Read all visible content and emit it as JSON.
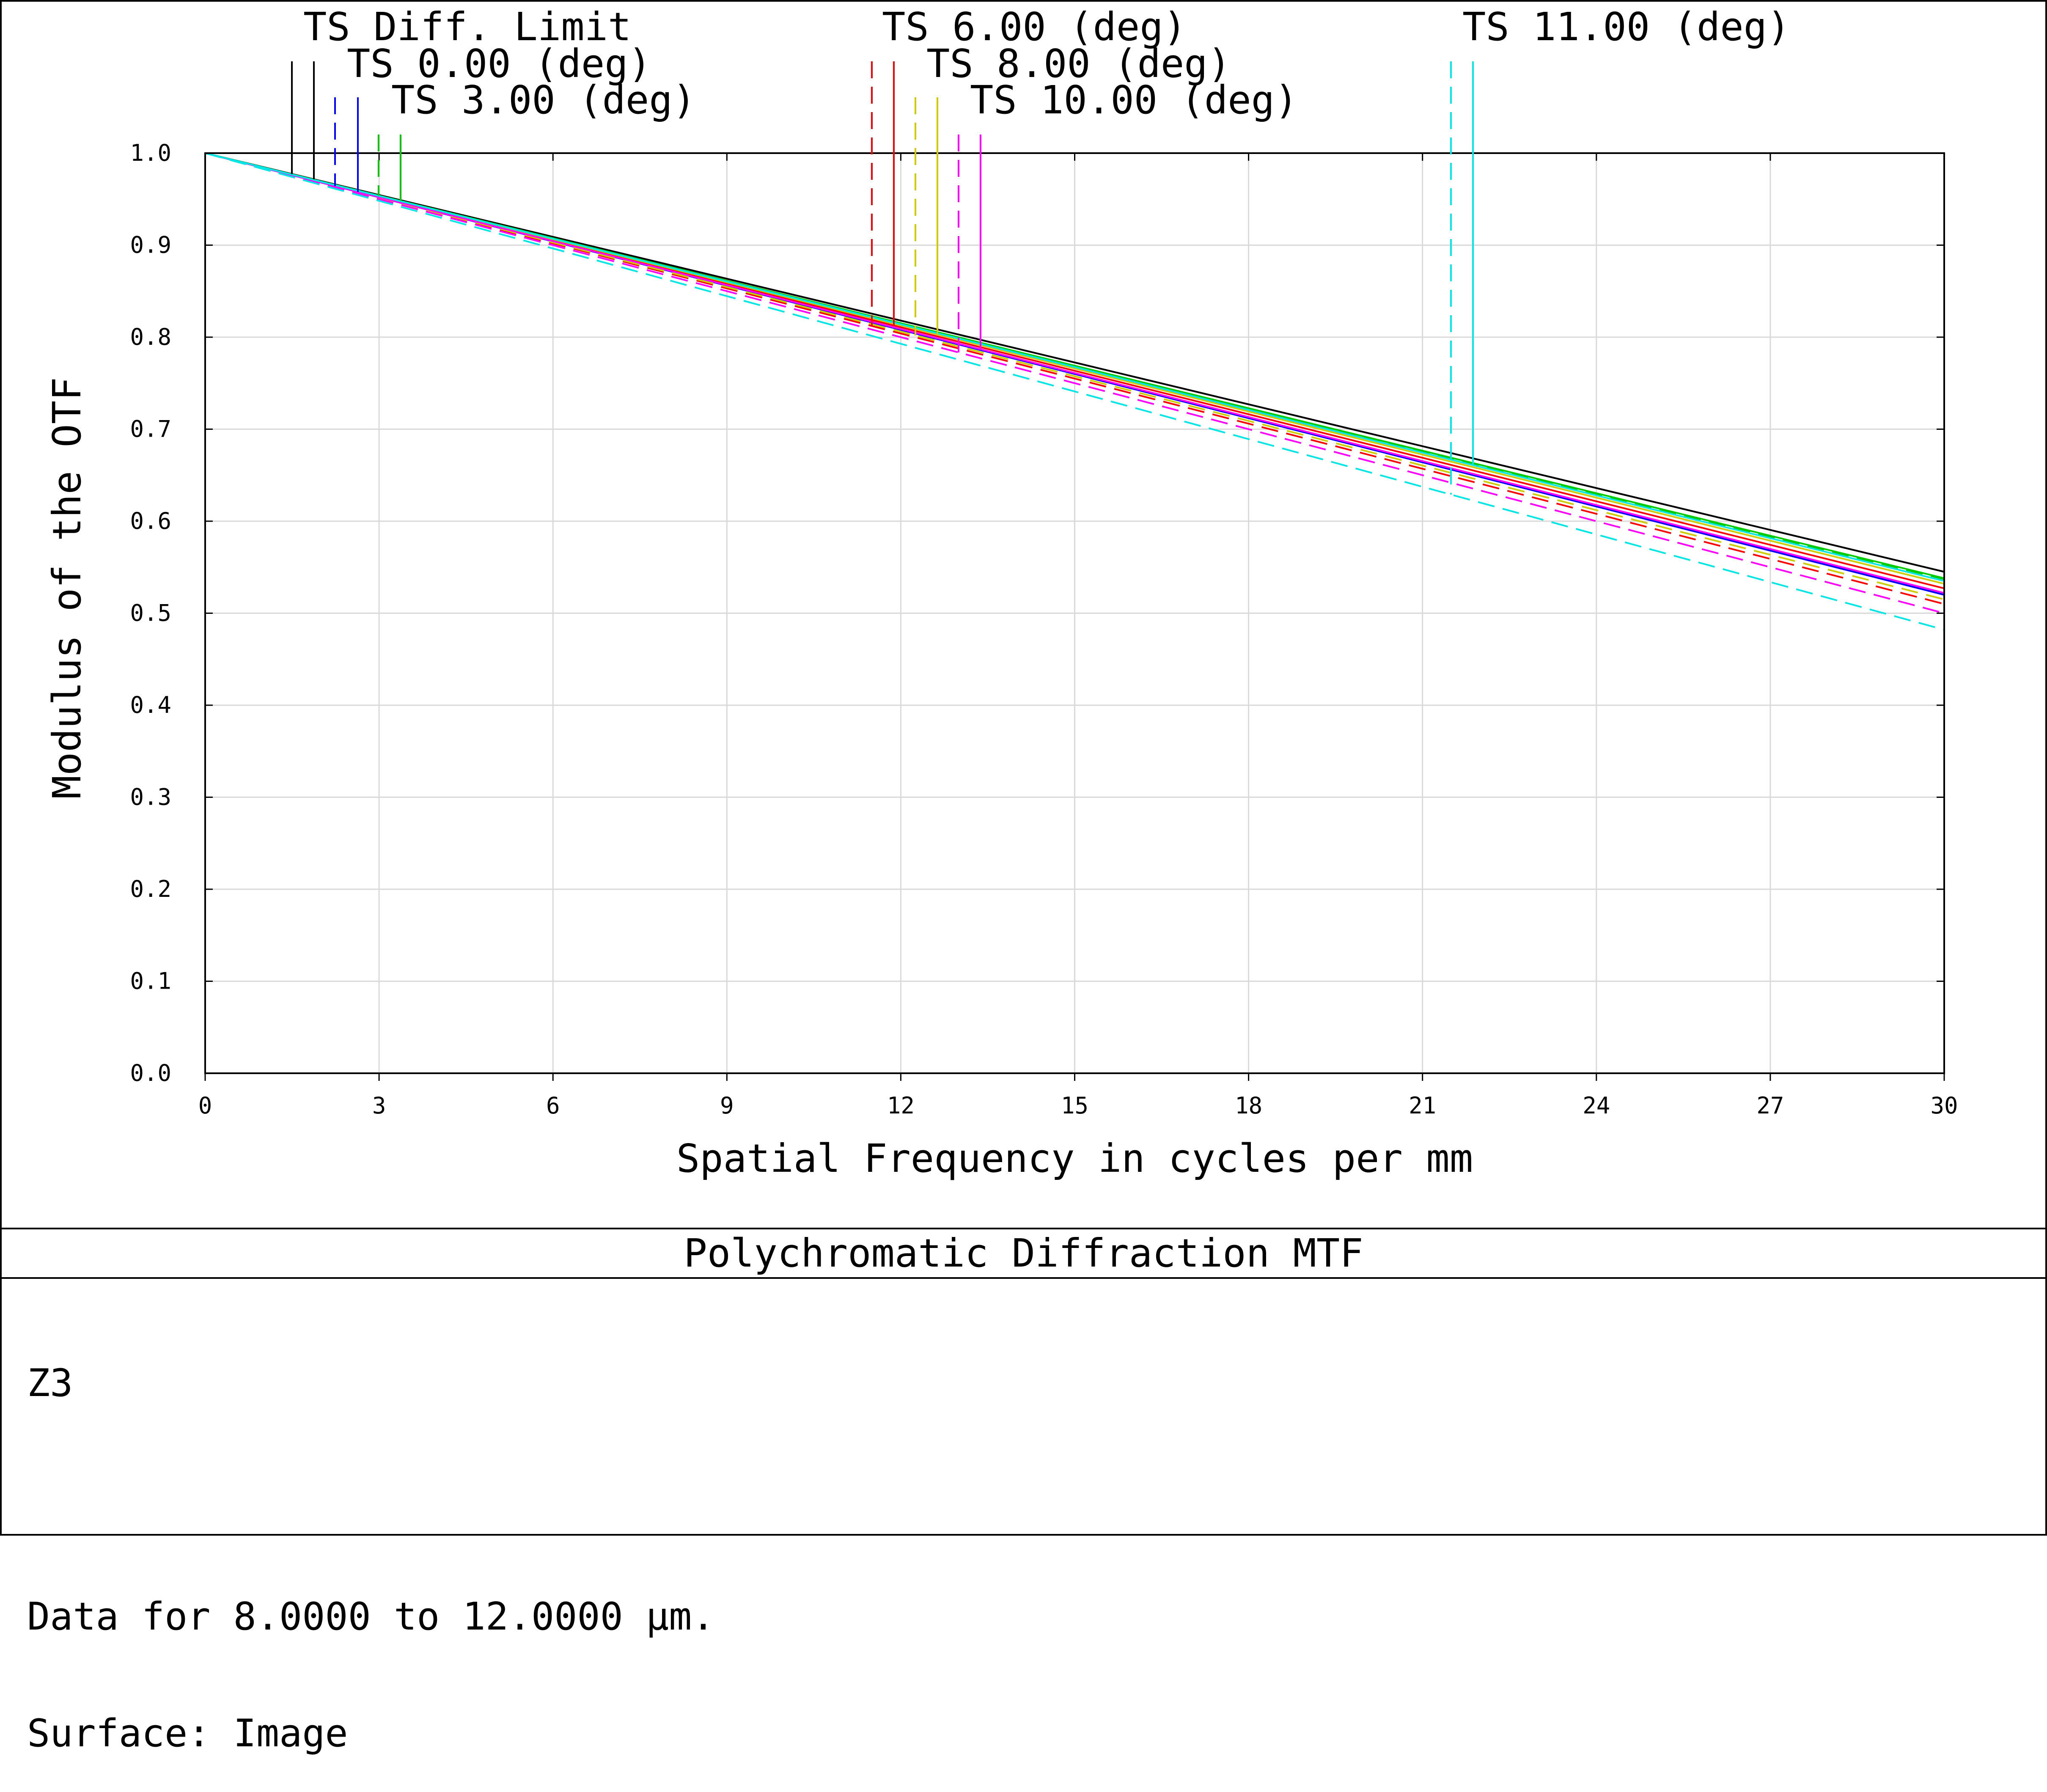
{
  "chart_data": {
    "type": "line",
    "title": "Polychromatic Diffraction MTF",
    "xlabel": "Spatial Frequency in cycles per mm",
    "ylabel": "Modulus of the OTF",
    "xlim": [
      0,
      30
    ],
    "ylim": [
      0,
      1
    ],
    "xticks": [
      "0",
      "3",
      "6",
      "9",
      "12",
      "15",
      "18",
      "21",
      "24",
      "27",
      "30"
    ],
    "yticks": [
      "0.0",
      "0.1",
      "0.2",
      "0.3",
      "0.4",
      "0.5",
      "0.6",
      "0.7",
      "0.8",
      "0.9",
      "1.0"
    ],
    "grid": true,
    "legend_placement": "top",
    "legend_labels": [
      "TS Diff. Limit",
      "TS 0.00 (deg)",
      "TS 3.00 (deg)",
      "TS 6.00 (deg)",
      "TS 8.00 (deg)",
      "TS 10.00 (deg)",
      "TS 11.00 (deg)"
    ],
    "series": [
      {
        "name": "TS Diff. Limit",
        "linestyle": "solid",
        "color": "#000000",
        "x": [
          0,
          30
        ],
        "y": [
          1.0,
          0.545
        ]
      },
      {
        "name": "TS Diff. Limit",
        "linestyle": "solid",
        "color": "#000000",
        "x": [
          0,
          30
        ],
        "y": [
          1.0,
          0.545
        ]
      },
      {
        "name": "TS 0.00 (deg)",
        "linestyle": "dashed",
        "color": "#0000ff",
        "x": [
          0,
          30
        ],
        "y": [
          1.0,
          0.52
        ]
      },
      {
        "name": "TS 0.00 (deg)",
        "linestyle": "solid",
        "color": "#0000ff",
        "x": [
          0,
          30
        ],
        "y": [
          1.0,
          0.52
        ]
      },
      {
        "name": "TS 3.00 (deg)",
        "linestyle": "dashed",
        "color": "#00cc00",
        "x": [
          0,
          30
        ],
        "y": [
          1.0,
          0.537
        ]
      },
      {
        "name": "TS 3.00 (deg)",
        "linestyle": "solid",
        "color": "#00cc00",
        "x": [
          0,
          30
        ],
        "y": [
          1.0,
          0.538
        ]
      },
      {
        "name": "TS 6.00 (deg)",
        "linestyle": "dashed",
        "color": "#ff0000",
        "x": [
          0,
          30
        ],
        "y": [
          1.0,
          0.51
        ]
      },
      {
        "name": "TS 6.00 (deg)",
        "linestyle": "solid",
        "color": "#ff0000",
        "x": [
          0,
          30
        ],
        "y": [
          1.0,
          0.527
        ]
      },
      {
        "name": "TS 8.00 (deg)",
        "linestyle": "dashed",
        "color": "#cccc00",
        "x": [
          0,
          30
        ],
        "y": [
          1.0,
          0.515
        ]
      },
      {
        "name": "TS 8.00 (deg)",
        "linestyle": "solid",
        "color": "#cccc00",
        "x": [
          0,
          30
        ],
        "y": [
          1.0,
          0.532
        ]
      },
      {
        "name": "TS 10.00 (deg)",
        "linestyle": "dashed",
        "color": "#ff00ff",
        "x": [
          0,
          30
        ],
        "y": [
          1.0,
          0.5
        ]
      },
      {
        "name": "TS 10.00 (deg)",
        "linestyle": "solid",
        "color": "#ff00ff",
        "x": [
          0,
          30
        ],
        "y": [
          1.0,
          0.522
        ]
      },
      {
        "name": "TS 11.00 (deg)",
        "linestyle": "dashed",
        "color": "#00e5e5",
        "x": [
          0,
          30
        ],
        "y": [
          1.0,
          0.482
        ]
      },
      {
        "name": "TS 11.00 (deg)",
        "linestyle": "solid",
        "color": "#00e5e5",
        "x": [
          0,
          30
        ],
        "y": [
          1.0,
          0.535
        ]
      }
    ]
  },
  "info": {
    "lens_name": "Z3",
    "data_range": "Data for 8.0000 to 12.0000 µm.",
    "surface": "Surface: Image"
  }
}
